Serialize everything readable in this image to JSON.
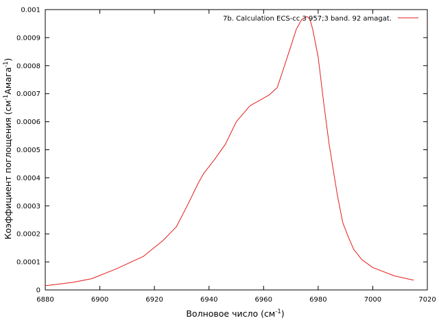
{
  "chart_data": {
    "type": "line",
    "title": "",
    "xlabel": "Волновое число (см",
    "xlabel_sup": "-1",
    "xlabel_tail": ")",
    "ylabel": "Коэффициент поглощения (см",
    "ylabel_sup1": "-1",
    "ylabel_mid": "Амага",
    "ylabel_sup2": "-1",
    "ylabel_tail": ")",
    "xlim": [
      6880,
      7020
    ],
    "ylim": [
      0,
      0.001
    ],
    "xticks": [
      "6880",
      "6900",
      "6920",
      "6940",
      "6960",
      "6980",
      "7000",
      "7020"
    ],
    "yticks": [
      "0",
      "0.0001",
      "0.0002",
      "0.0003",
      "0.0004",
      "0.0005",
      "0.0006",
      "0.0007",
      "0.0008",
      "0.0009",
      "0.001"
    ],
    "grid": false,
    "legend_position": "top-right",
    "series": [
      {
        "name": "7b. Calculation ECS-cc  3  957;3 band. 92 amagat.",
        "color": "#e41a1c",
        "x": [
          6880,
          6890,
          6897,
          6906,
          6916,
          6923,
          6928,
          6932,
          6936,
          6938,
          6942,
          6946,
          6950,
          6955,
          6962,
          6965,
          6967,
          6970,
          6972,
          6974,
          6976,
          6977,
          6978,
          6980,
          6982,
          6984,
          6987,
          6989,
          6991,
          6993,
          6996,
          7000,
          7008,
          7015
        ],
        "y": [
          1.5e-05,
          2.7e-05,
          4e-05,
          7.5e-05,
          0.00012,
          0.000175,
          0.000225,
          0.0003,
          0.00038,
          0.000415,
          0.000465,
          0.00052,
          0.0006,
          0.000657,
          0.000695,
          0.000722,
          0.00078,
          0.00087,
          0.00093,
          0.000965,
          0.000975,
          0.000965,
          0.00093,
          0.00083,
          0.00067,
          0.00052,
          0.00034,
          0.00024,
          0.00019,
          0.000145,
          0.000108,
          8e-05,
          5e-05,
          3.5e-05
        ]
      }
    ]
  }
}
